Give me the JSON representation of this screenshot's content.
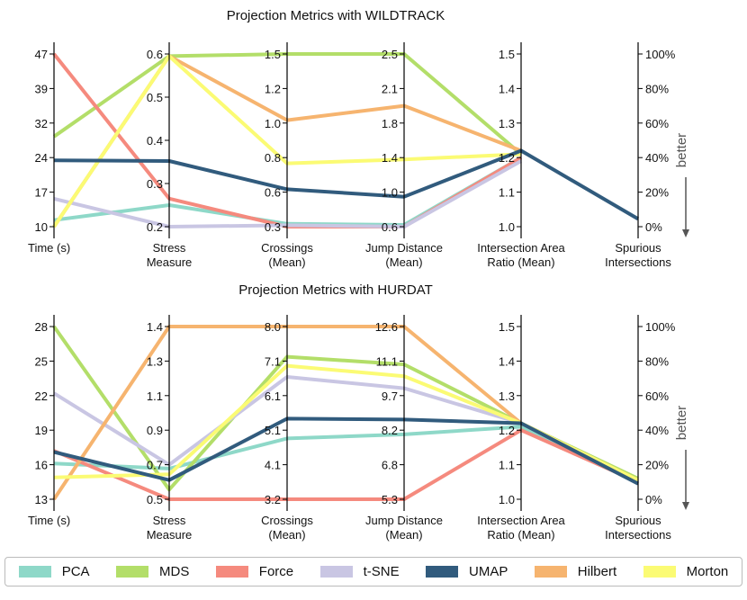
{
  "chart_data": [
    {
      "type": "parallel_coordinates",
      "title": "Projection Metrics with WILDTRACK",
      "axes": [
        {
          "label": [
            "Time (s)"
          ],
          "min": 10,
          "max": 47,
          "ticks": [
            "47",
            "39",
            "32",
            "24",
            "17",
            "10"
          ]
        },
        {
          "label": [
            "Stress",
            "Measure"
          ],
          "min": 0.2,
          "max": 0.6,
          "ticks": [
            "0.6",
            "0.5",
            "0.4",
            "0.3",
            "0.2"
          ]
        },
        {
          "label": [
            "Crossings",
            "(Mean)"
          ],
          "min": 0.3,
          "max": 1.5,
          "ticks": [
            "1.5",
            "1.2",
            "1.0",
            "0.8",
            "0.6",
            "0.3"
          ]
        },
        {
          "label": [
            "Jump Distance",
            "(Mean)"
          ],
          "min": 0.6,
          "max": 2.5,
          "ticks": [
            "2.5",
            "2.1",
            "1.8",
            "1.4",
            "1.0",
            "0.6"
          ]
        },
        {
          "label": [
            "Intersection Area",
            "Ratio (Mean)"
          ],
          "min": 1.0,
          "max": 1.5,
          "ticks": [
            "1.5",
            "1.4",
            "1.3",
            "1.2",
            "1.1",
            "1.0"
          ]
        },
        {
          "label": [
            "Spurious",
            "Intersections"
          ],
          "min": 0,
          "max": 100,
          "ticks": [
            "100%",
            "80%",
            "60%",
            "40%",
            "20%",
            "0%"
          ],
          "right_ticks": true
        }
      ],
      "series": [
        {
          "name": "PCA",
          "values": [
            11.4,
            0.25,
            0.32,
            0.62,
            1.2,
            null
          ]
        },
        {
          "name": "MDS",
          "values": [
            29.3,
            0.595,
            1.5,
            2.5,
            1.21,
            null
          ]
        },
        {
          "name": "Force",
          "values": [
            47,
            0.265,
            0.3,
            0.6,
            1.2,
            null
          ]
        },
        {
          "name": "t-SNE",
          "values": [
            16,
            0.2,
            0.31,
            0.6,
            1.19,
            null
          ]
        },
        {
          "name": "Hilbert",
          "values": [
            10,
            0.595,
            1.04,
            1.93,
            1.22,
            null
          ]
        },
        {
          "name": "Morton",
          "values": [
            10,
            0.595,
            0.74,
            1.34,
            1.21,
            null
          ]
        },
        {
          "name": "UMAP",
          "values": [
            24.2,
            0.352,
            0.56,
            0.93,
            1.22,
            4.5
          ]
        }
      ],
      "better_label": "better"
    },
    {
      "type": "parallel_coordinates",
      "title": "Projection Metrics with HURDAT",
      "axes": [
        {
          "label": [
            "Time (s)"
          ],
          "min": 13,
          "max": 28,
          "ticks": [
            "28",
            "25",
            "22",
            "19",
            "16",
            "13"
          ]
        },
        {
          "label": [
            "Stress",
            "Measure"
          ],
          "min": 0.5,
          "max": 1.4,
          "ticks": [
            "1.4",
            "1.3",
            "1.1",
            "0.9",
            "0.7",
            "0.5"
          ]
        },
        {
          "label": [
            "Crossings",
            "(Mean)"
          ],
          "min": 3.2,
          "max": 8.0,
          "ticks": [
            "8.0",
            "7.1",
            "6.1",
            "5.1",
            "4.1",
            "3.2"
          ]
        },
        {
          "label": [
            "Jump Distance",
            "(Mean)"
          ],
          "min": 5.3,
          "max": 12.6,
          "ticks": [
            "12.6",
            "11.1",
            "9.7",
            "8.2",
            "6.8",
            "5.3"
          ]
        },
        {
          "label": [
            "Intersection Area",
            "Ratio (Mean)"
          ],
          "min": 1.0,
          "max": 1.5,
          "ticks": [
            "1.5",
            "1.4",
            "1.3",
            "1.2",
            "1.1",
            "1.0"
          ]
        },
        {
          "label": [
            "Spurious",
            "Intersections"
          ],
          "min": 0,
          "max": 100,
          "ticks": [
            "100%",
            "80%",
            "60%",
            "40%",
            "20%",
            "0%"
          ],
          "right_ticks": true
        }
      ],
      "series": [
        {
          "name": "PCA",
          "values": [
            16.1,
            0.66,
            4.89,
            8.04,
            1.21,
            11
          ]
        },
        {
          "name": "MDS",
          "values": [
            28,
            0.55,
            7.16,
            11.0,
            1.22,
            12
          ]
        },
        {
          "name": "Force",
          "values": [
            17.2,
            0.5,
            3.2,
            5.3,
            1.2,
            10
          ]
        },
        {
          "name": "t-SNE",
          "values": [
            22.2,
            0.68,
            6.6,
            9.99,
            1.22,
            10
          ]
        },
        {
          "name": "Hilbert",
          "values": [
            13,
            1.4,
            8.0,
            12.6,
            1.22,
            11
          ]
        },
        {
          "name": "Morton",
          "values": [
            14.9,
            0.63,
            6.91,
            10.5,
            1.22,
            11
          ]
        },
        {
          "name": "UMAP",
          "values": [
            17.1,
            0.6,
            5.44,
            8.67,
            1.22,
            9
          ]
        }
      ],
      "better_label": "better"
    }
  ],
  "colors": {
    "PCA": "#8ed8c8",
    "MDS": "#b3de69",
    "Force": "#f58a7e",
    "t-SNE": "#c9c6e3",
    "UMAP": "#315b7d",
    "Hilbert": "#f6b46f",
    "Morton": "#fbfb74"
  },
  "legend": [
    "PCA",
    "MDS",
    "Force",
    "t-SNE",
    "UMAP",
    "Hilbert",
    "Morton"
  ]
}
